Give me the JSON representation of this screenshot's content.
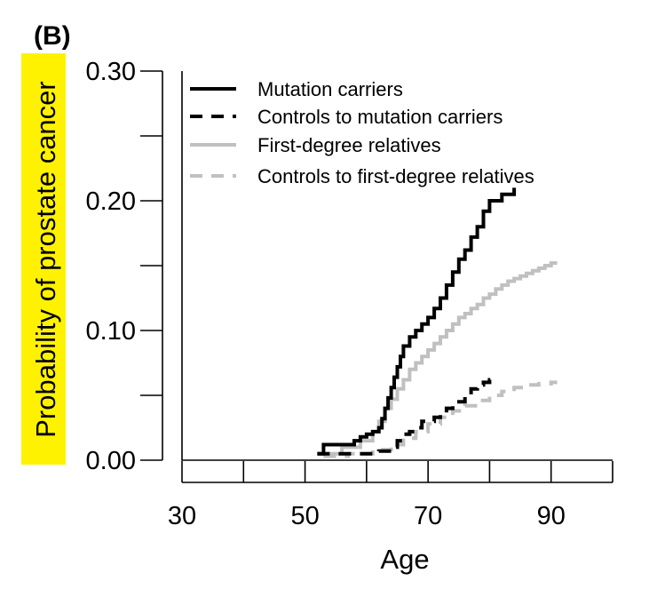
{
  "chart_data": {
    "type": "line",
    "step": true,
    "panel_label": "(B)",
    "xlabel": "Age",
    "ylabel": "Probability of prostate cancer",
    "ylabel_highlight": "#fff200",
    "xlim": [
      30,
      100
    ],
    "ylim": [
      0,
      0.3
    ],
    "x_ticks": [
      30,
      40,
      50,
      60,
      70,
      80,
      90,
      100
    ],
    "x_tick_labels": [
      "30",
      "",
      "50",
      "",
      "70",
      "",
      "90",
      ""
    ],
    "y_ticks": [
      0,
      0.05,
      0.1,
      0.15,
      0.2,
      0.25,
      0.3
    ],
    "y_tick_labels": [
      "0.00",
      "",
      "0.10",
      "",
      "0.20",
      "",
      "0.30"
    ],
    "grid": false,
    "legend_position": "top-left",
    "series": [
      {
        "name": "Mutation carriers",
        "color": "#000000",
        "dash": "solid",
        "x": [
          52,
          53,
          58,
          59,
          60,
          61,
          62,
          62.5,
          63,
          63.5,
          64,
          64.5,
          65,
          65.5,
          66,
          67,
          68,
          69,
          70,
          71,
          72,
          73,
          74,
          75,
          76,
          77,
          78,
          79,
          80,
          82,
          84
        ],
        "y": [
          0.005,
          0.012,
          0.015,
          0.018,
          0.02,
          0.022,
          0.025,
          0.032,
          0.04,
          0.048,
          0.056,
          0.064,
          0.072,
          0.08,
          0.088,
          0.095,
          0.1,
          0.105,
          0.11,
          0.117,
          0.125,
          0.135,
          0.145,
          0.155,
          0.162,
          0.172,
          0.18,
          0.192,
          0.2,
          0.205,
          0.21
        ]
      },
      {
        "name": "Controls to mutation carriers",
        "color": "#000000",
        "dash": "dashed",
        "x": [
          52,
          56,
          60,
          62,
          64,
          65,
          66,
          67,
          68,
          69,
          70,
          71,
          72,
          73,
          74,
          75,
          76,
          77,
          78,
          79,
          80,
          81
        ],
        "y": [
          0.005,
          0.005,
          0.005,
          0.007,
          0.01,
          0.015,
          0.02,
          0.022,
          0.025,
          0.03,
          0.03,
          0.033,
          0.035,
          0.04,
          0.045,
          0.045,
          0.05,
          0.055,
          0.058,
          0.06,
          0.062,
          0.062
        ]
      },
      {
        "name": "First-degree relatives",
        "color": "#c0c0c0",
        "dash": "solid",
        "x": [
          53,
          56,
          59,
          61,
          62,
          63,
          64,
          65,
          66,
          67,
          68,
          69,
          70,
          71,
          72,
          73,
          74,
          75,
          76,
          77,
          78,
          79,
          80,
          81,
          82,
          83,
          84,
          85,
          86,
          87,
          88,
          89,
          90,
          91
        ],
        "y": [
          0.005,
          0.01,
          0.015,
          0.022,
          0.03,
          0.04,
          0.047,
          0.055,
          0.062,
          0.07,
          0.075,
          0.08,
          0.085,
          0.09,
          0.095,
          0.1,
          0.105,
          0.11,
          0.113,
          0.117,
          0.12,
          0.125,
          0.128,
          0.132,
          0.135,
          0.138,
          0.14,
          0.142,
          0.144,
          0.146,
          0.148,
          0.15,
          0.152,
          0.152
        ]
      },
      {
        "name": "Controls to first-degree relatives",
        "color": "#c0c0c0",
        "dash": "dashed",
        "x": [
          53,
          57,
          61,
          64,
          66,
          68,
          70,
          72,
          74,
          76,
          78,
          80,
          82,
          84,
          86,
          88,
          90,
          91
        ],
        "y": [
          0.003,
          0.005,
          0.008,
          0.012,
          0.017,
          0.022,
          0.028,
          0.033,
          0.038,
          0.042,
          0.046,
          0.05,
          0.053,
          0.056,
          0.058,
          0.059,
          0.06,
          0.06
        ]
      }
    ]
  }
}
